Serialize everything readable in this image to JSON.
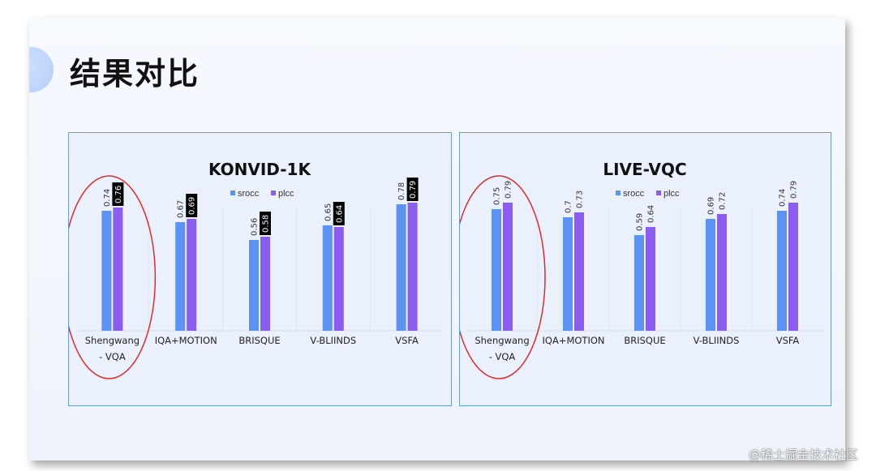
{
  "slide": {
    "title": "结果对比",
    "watermark": "@稀土掘金技术社区"
  },
  "colors": {
    "srocc": "#5b93f4",
    "plcc": "#8a5cf0",
    "highlight_ellipse": "#e02a2a",
    "label_box": "#000000"
  },
  "chart_data": [
    {
      "type": "bar",
      "title": "KONVID-1K",
      "categories": [
        "Shengwang - VQA",
        "IQA+MOTION",
        "BRISQUE",
        "V-BLIINDS",
        "VSFA"
      ],
      "series": [
        {
          "name": "srocc",
          "values": [
            0.74,
            0.67,
            0.56,
            0.65,
            0.78
          ]
        },
        {
          "name": "plcc",
          "values": [
            0.76,
            0.69,
            0.58,
            0.64,
            0.79
          ]
        }
      ],
      "boxed_labels": {
        "series": "plcc",
        "highlighted": true
      },
      "highlighted_category": "Shengwang - VQA",
      "legend_position": "top-center",
      "ylim": [
        0,
        1
      ],
      "grid": false
    },
    {
      "type": "bar",
      "title": "LIVE-VQC",
      "categories": [
        "Shengwang - VQA",
        "IQA+MOTION",
        "BRISQUE",
        "V-BLIINDS",
        "VSFA"
      ],
      "series": [
        {
          "name": "srocc",
          "values": [
            0.75,
            0.7,
            0.59,
            0.69,
            0.74
          ]
        },
        {
          "name": "plcc",
          "values": [
            0.79,
            0.73,
            0.64,
            0.72,
            0.79
          ]
        }
      ],
      "boxed_labels": {
        "series": "plcc",
        "highlighted": false
      },
      "highlighted_category": "Shengwang - VQA",
      "legend_position": "top-center",
      "ylim": [
        0,
        1
      ],
      "grid": false
    }
  ]
}
